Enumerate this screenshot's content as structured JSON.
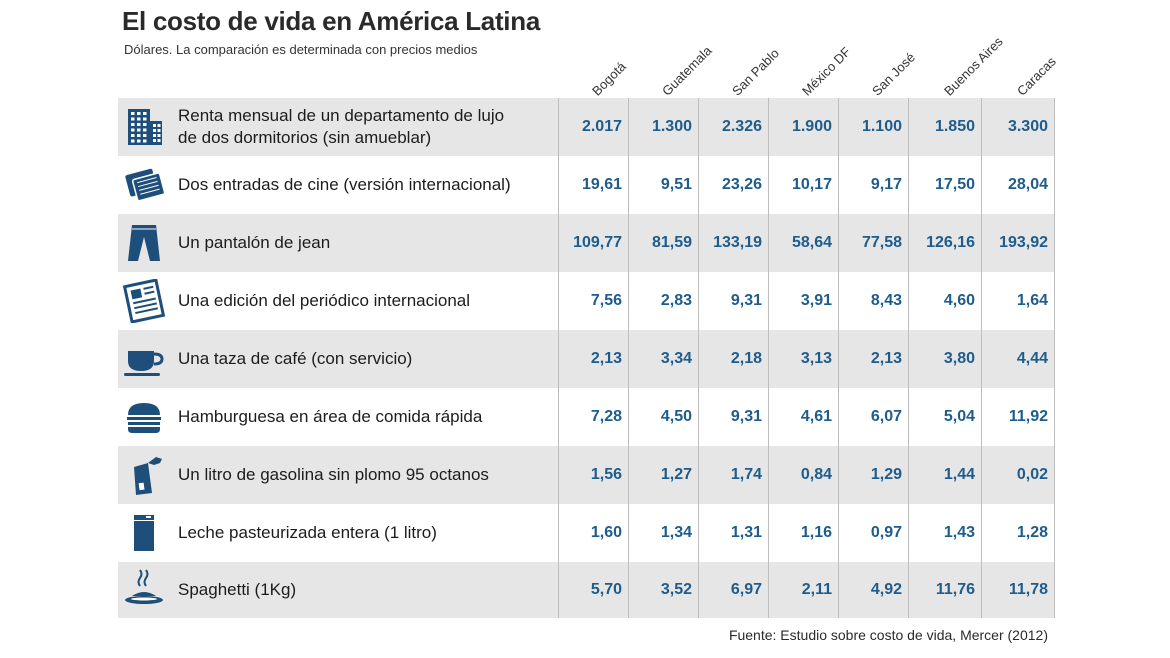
{
  "title": "El costo de vida en América Latina",
  "subtitle": "Dólares. La comparación es determinada con precios medios",
  "source": "Fuente: Estudio sobre costo de vida, Mercer (2012)",
  "colors": {
    "value": "#1e5c8c",
    "icon": "#1e4f7a",
    "stripe": "#e6e6e6"
  },
  "chart_data": {
    "type": "table",
    "title": "El costo de vida en América Latina",
    "subtitle": "Dólares. La comparación es determinada con precios medios",
    "columns": [
      "Bogotá",
      "Guatemala",
      "San Pablo",
      "México DF",
      "San José",
      "Buenos Aires",
      "Caracas"
    ],
    "rows": [
      {
        "icon": "building-icon",
        "label": "Renta mensual de un departamento de lujo de dos dormitorios (sin amueblar)",
        "label_lines": [
          "Renta mensual de un departamento de lujo",
          "de dos dormitorios (sin amueblar)"
        ],
        "values": [
          "2.017",
          "1.300",
          "2.326",
          "1.900",
          "1.100",
          "1.850",
          "3.300"
        ]
      },
      {
        "icon": "cinema-tickets-icon",
        "label": "Dos entradas de cine (versión internacional)",
        "values": [
          "19,61",
          "9,51",
          "23,26",
          "10,17",
          "9,17",
          "17,50",
          "28,04"
        ]
      },
      {
        "icon": "jeans-icon",
        "label": "Un pantalón de jean",
        "values": [
          "109,77",
          "81,59",
          "133,19",
          "58,64",
          "77,58",
          "126,16",
          "193,92"
        ]
      },
      {
        "icon": "newspaper-icon",
        "label": "Una edición del periódico internacional",
        "values": [
          "7,56",
          "2,83",
          "9,31",
          "3,91",
          "8,43",
          "4,60",
          "1,64"
        ]
      },
      {
        "icon": "coffee-cup-icon",
        "label": "Una taza de café (con servicio)",
        "values": [
          "2,13",
          "3,34",
          "2,18",
          "3,13",
          "2,13",
          "3,80",
          "4,44"
        ]
      },
      {
        "icon": "hamburger-icon",
        "label": "Hamburguesa en área de comida rápida",
        "values": [
          "7,28",
          "4,50",
          "9,31",
          "4,61",
          "6,07",
          "5,04",
          "11,92"
        ]
      },
      {
        "icon": "fuel-pump-icon",
        "label": "Un litro de gasolina sin plomo 95 octanos",
        "values": [
          "1,56",
          "1,27",
          "1,74",
          "0,84",
          "1,29",
          "1,44",
          "0,02"
        ]
      },
      {
        "icon": "milk-carton-icon",
        "label": "Leche pasteurizada entera (1 litro)",
        "values": [
          "1,60",
          "1,34",
          "1,31",
          "1,16",
          "0,97",
          "1,43",
          "1,28"
        ]
      },
      {
        "icon": "spaghetti-plate-icon",
        "label": "Spaghetti (1Kg)",
        "values": [
          "5,70",
          "3,52",
          "6,97",
          "2,11",
          "4,92",
          "11,76",
          "11,78"
        ]
      }
    ]
  }
}
